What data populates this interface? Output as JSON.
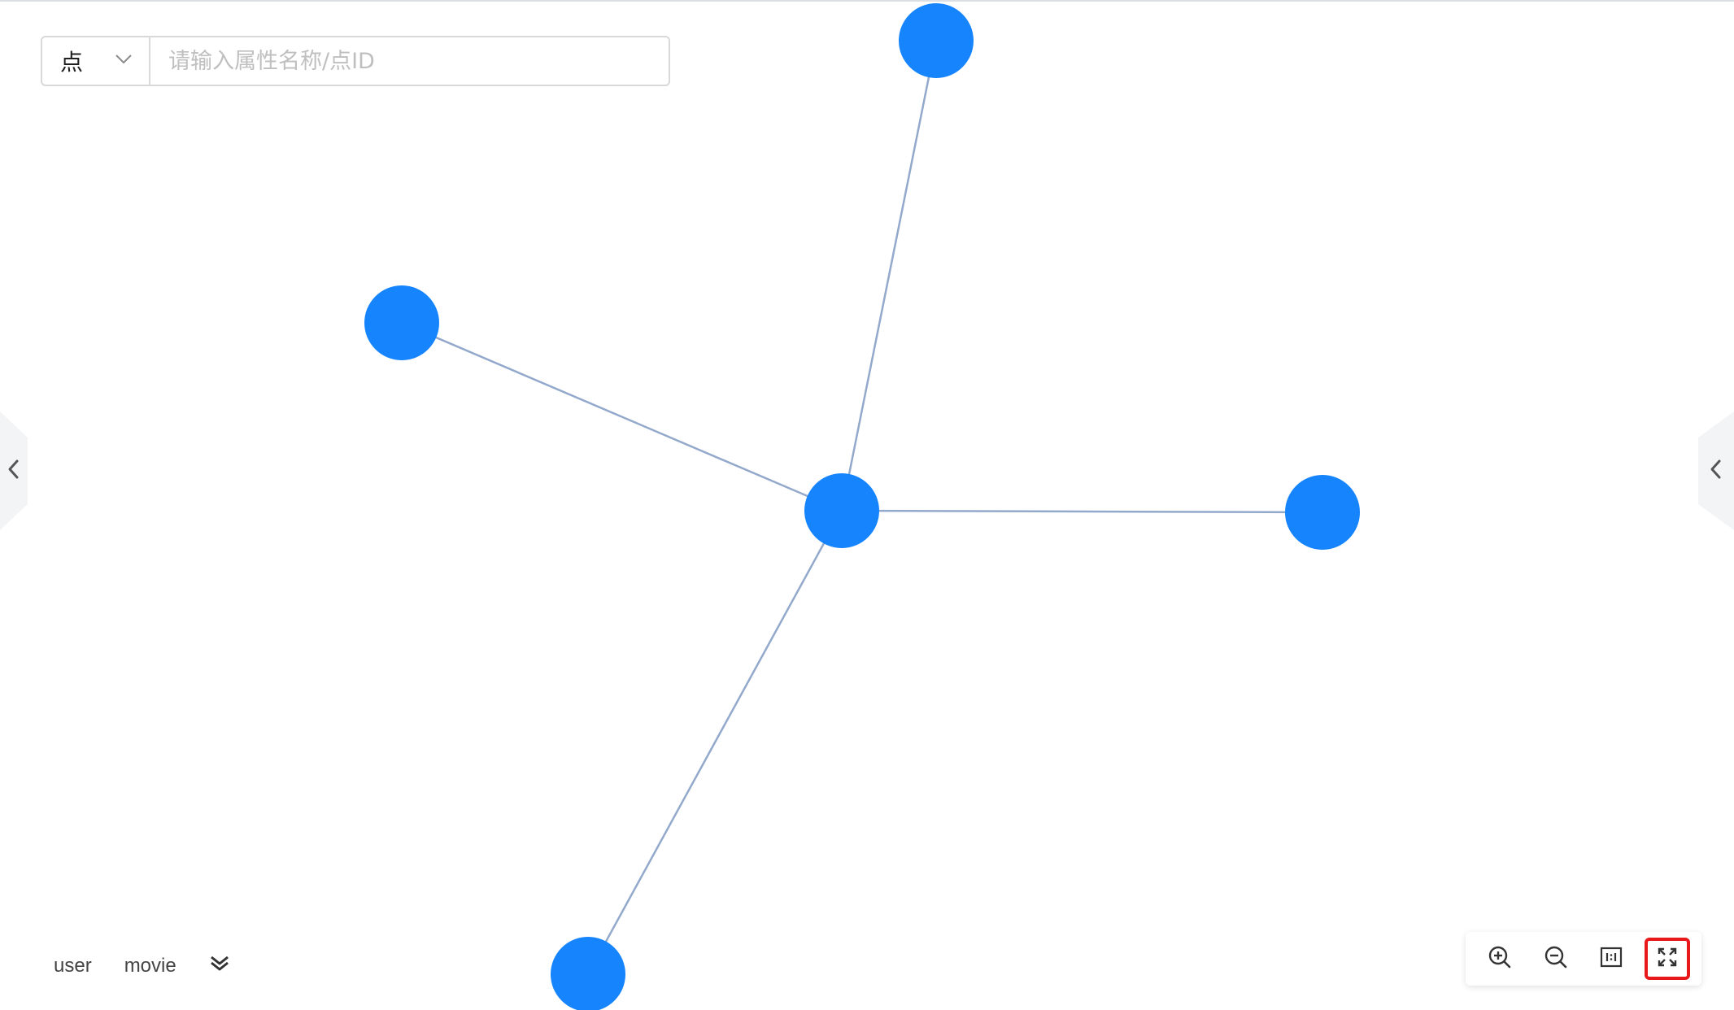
{
  "search": {
    "type_label": "点",
    "placeholder": "请输入属性名称/点ID"
  },
  "legend": {
    "items": [
      "user",
      "movie"
    ]
  },
  "graph": {
    "node_color": "#1684fc",
    "edge_color": "#93a9cc",
    "nodes": [
      {
        "id": "center"
      },
      {
        "id": "top"
      },
      {
        "id": "upper-left"
      },
      {
        "id": "right"
      },
      {
        "id": "bottom-left"
      }
    ],
    "edges": [
      {
        "source": "center",
        "target": "top"
      },
      {
        "source": "center",
        "target": "upper-left"
      },
      {
        "source": "center",
        "target": "right"
      },
      {
        "source": "center",
        "target": "bottom-left"
      }
    ]
  },
  "toolbar": {
    "buttons": [
      {
        "icon": "zoom-in-icon"
      },
      {
        "icon": "zoom-out-icon"
      },
      {
        "icon": "actual-size-icon"
      },
      {
        "icon": "fit-view-icon"
      }
    ],
    "highlight_color": "#e8181b"
  },
  "side_panels": {
    "left_icon": "chevron-left-icon",
    "right_icon": "chevron-left-icon"
  }
}
